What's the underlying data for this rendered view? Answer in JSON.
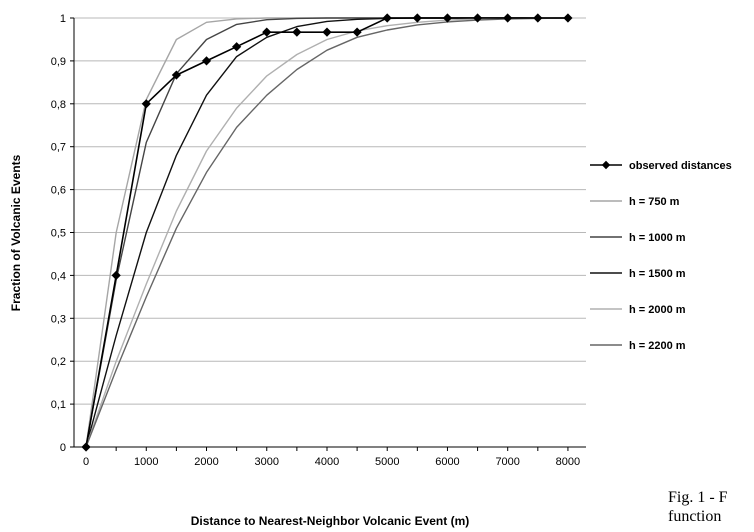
{
  "chart_data": {
    "type": "line",
    "title": "",
    "xlabel": "Distance to Nearest-Neighbor Volcanic Event (m)",
    "ylabel": "Fraction of Volcanic Events",
    "xlim": [
      -200,
      8300
    ],
    "ylim": [
      0,
      1
    ],
    "x_ticks": [
      "0",
      "1000",
      "2000",
      "3000",
      "4000",
      "5000",
      "6000",
      "7000",
      "8000"
    ],
    "x_tick_values": [
      0,
      1000,
      2000,
      3000,
      4000,
      5000,
      6000,
      7000,
      8000
    ],
    "y_ticks": [
      "0",
      "0,1",
      "0,2",
      "0,3",
      "0,4",
      "0,5",
      "0,6",
      "0,7",
      "0,8",
      "0,9",
      "1"
    ],
    "y_tick_values": [
      0,
      0.1,
      0.2,
      0.3,
      0.4,
      0.5,
      0.6,
      0.7,
      0.8,
      0.9,
      1
    ],
    "grid": "horizontal",
    "legend_position": "right",
    "x": [
      0,
      500,
      1000,
      1500,
      2000,
      2500,
      3000,
      3500,
      4000,
      4500,
      5000,
      5500,
      6000,
      6500,
      7000,
      7500,
      8000
    ],
    "series": [
      {
        "name": "observed distances",
        "color": "#000000",
        "marker": "diamond",
        "values": [
          0,
          0.4,
          0.8,
          0.867,
          0.9,
          0.933,
          0.967,
          0.967,
          0.967,
          0.967,
          1,
          1,
          1,
          1,
          1,
          1,
          1
        ]
      },
      {
        "name": "h = 750 m",
        "color": "#a6a6a6",
        "values": [
          0,
          0.5,
          0.81,
          0.95,
          0.99,
          0.998,
          1,
          1,
          1,
          1,
          1,
          1,
          1,
          1,
          1,
          1,
          1
        ]
      },
      {
        "name": "h = 1000 m",
        "color": "#444444",
        "values": [
          0,
          0.39,
          0.71,
          0.87,
          0.95,
          0.985,
          0.996,
          0.999,
          1,
          1,
          1,
          1,
          1,
          1,
          1,
          1,
          1
        ]
      },
      {
        "name": "h = 1500 m",
        "color": "#111111",
        "values": [
          0,
          0.26,
          0.5,
          0.68,
          0.82,
          0.91,
          0.955,
          0.98,
          0.992,
          0.997,
          0.999,
          1,
          1,
          1,
          1,
          1,
          1
        ]
      },
      {
        "name": "h = 2000 m",
        "color": "#b0b0b0",
        "values": [
          0,
          0.2,
          0.38,
          0.55,
          0.69,
          0.79,
          0.865,
          0.915,
          0.95,
          0.97,
          0.982,
          0.99,
          0.995,
          0.998,
          0.999,
          1,
          1
        ]
      },
      {
        "name": "h = 2200 m",
        "color": "#666666",
        "values": [
          0,
          0.18,
          0.35,
          0.51,
          0.64,
          0.745,
          0.82,
          0.88,
          0.925,
          0.955,
          0.972,
          0.984,
          0.991,
          0.995,
          0.998,
          0.999,
          1
        ]
      }
    ]
  },
  "caption": {
    "line1": "Fig. 1 - F",
    "line2": "function"
  }
}
